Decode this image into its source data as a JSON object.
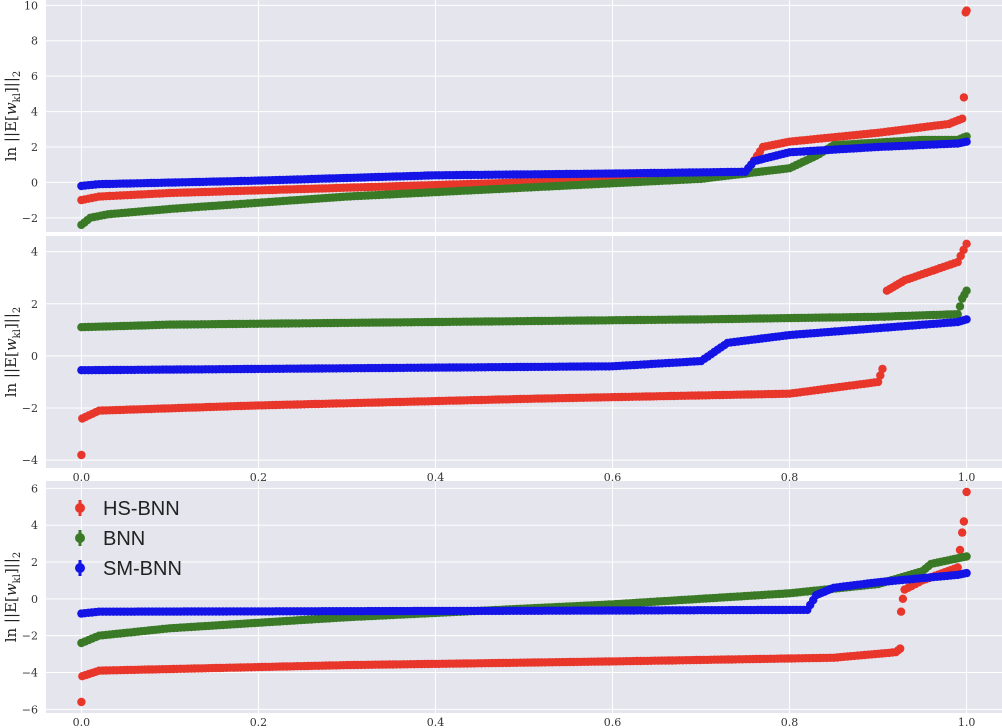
{
  "colors": {
    "panel_bg": "#e5e5ee",
    "grid": "#ffffff",
    "HS-BNN": "#e8362b",
    "BNN": "#3a7a26",
    "SM-BNN": "#1414e6"
  },
  "chart_data": [
    {
      "type": "scatter",
      "title": "",
      "xlabel": "",
      "ylabel": "ln ||E[w_kl]||_2",
      "xlim": [
        -0.04,
        1.04
      ],
      "ylim": [
        -2.8,
        10.3
      ],
      "yticks": [
        -2,
        0,
        2,
        4,
        6,
        8,
        10
      ],
      "xticks": [],
      "x_tick_labels": [],
      "grid": true,
      "legend": null,
      "series": [
        {
          "name": "HS-BNN",
          "points": [
            [
              0.0,
              -1.0
            ],
            [
              0.02,
              -0.8
            ],
            [
              0.1,
              -0.6
            ],
            [
              0.3,
              -0.3
            ],
            [
              0.5,
              0.0
            ],
            [
              0.6,
              0.1
            ],
            [
              0.75,
              0.5
            ],
            [
              0.77,
              2.0
            ],
            [
              0.8,
              2.3
            ],
            [
              0.9,
              2.8
            ],
            [
              0.98,
              3.3
            ],
            [
              0.995,
              3.6
            ],
            [
              0.997,
              4.8
            ],
            [
              0.999,
              9.6
            ],
            [
              1.0,
              9.7
            ]
          ]
        },
        {
          "name": "BNN",
          "points": [
            [
              0.0,
              -2.4
            ],
            [
              0.01,
              -2.0
            ],
            [
              0.03,
              -1.8
            ],
            [
              0.1,
              -1.5
            ],
            [
              0.3,
              -0.8
            ],
            [
              0.5,
              -0.3
            ],
            [
              0.7,
              0.2
            ],
            [
              0.8,
              0.8
            ],
            [
              0.83,
              1.5
            ],
            [
              0.85,
              2.1
            ],
            [
              0.95,
              2.4
            ],
            [
              0.99,
              2.4
            ],
            [
              1.0,
              2.6
            ]
          ]
        },
        {
          "name": "SM-BNN",
          "points": [
            [
              0.0,
              -0.2
            ],
            [
              0.02,
              -0.1
            ],
            [
              0.2,
              0.1
            ],
            [
              0.4,
              0.4
            ],
            [
              0.6,
              0.5
            ],
            [
              0.75,
              0.6
            ],
            [
              0.76,
              1.2
            ],
            [
              0.8,
              1.7
            ],
            [
              0.9,
              2.0
            ],
            [
              0.99,
              2.2
            ],
            [
              1.0,
              2.3
            ]
          ]
        }
      ]
    },
    {
      "type": "scatter",
      "title": "",
      "xlabel": "",
      "ylabel": "ln ||E[w_kl]||_2",
      "xlim": [
        -0.04,
        1.04
      ],
      "ylim": [
        -4.3,
        4.6
      ],
      "yticks": [
        -4,
        -2,
        0,
        2,
        4
      ],
      "xticks": [
        0.0,
        0.2,
        0.4,
        0.6,
        0.8,
        1.0
      ],
      "x_tick_labels": [
        "0.0",
        "0.2",
        "0.4",
        "0.6",
        "0.8",
        "1.0"
      ],
      "grid": true,
      "legend": null,
      "series": [
        {
          "name": "HS-BNN",
          "points": [
            [
              0.0,
              -3.8
            ],
            [
              0.001,
              -2.4
            ],
            [
              0.02,
              -2.1
            ],
            [
              0.2,
              -1.9
            ],
            [
              0.5,
              -1.65
            ],
            [
              0.8,
              -1.45
            ],
            [
              0.9,
              -1.0
            ],
            [
              0.905,
              -0.5
            ],
            [
              0.907,
              1.5
            ],
            [
              0.91,
              2.5
            ],
            [
              0.93,
              2.9
            ],
            [
              0.99,
              3.6
            ],
            [
              1.0,
              4.3
            ]
          ]
        },
        {
          "name": "BNN",
          "points": [
            [
              0.0,
              1.1
            ],
            [
              0.1,
              1.2
            ],
            [
              0.4,
              1.3
            ],
            [
              0.7,
              1.4
            ],
            [
              0.9,
              1.5
            ],
            [
              0.99,
              1.6
            ],
            [
              0.995,
              2.2
            ],
            [
              1.0,
              2.5
            ]
          ]
        },
        {
          "name": "SM-BNN",
          "points": [
            [
              0.0,
              -0.55
            ],
            [
              0.2,
              -0.5
            ],
            [
              0.6,
              -0.4
            ],
            [
              0.7,
              -0.2
            ],
            [
              0.73,
              0.5
            ],
            [
              0.8,
              0.8
            ],
            [
              0.99,
              1.3
            ],
            [
              1.0,
              1.4
            ]
          ]
        }
      ]
    },
    {
      "type": "scatter",
      "title": "",
      "xlabel": "",
      "ylabel": "ln ||E[w_kl]||_2",
      "xlim": [
        -0.04,
        1.04
      ],
      "ylim": [
        -6.2,
        6.4
      ],
      "yticks": [
        -6,
        -4,
        -2,
        0,
        2,
        4,
        6
      ],
      "xticks": [
        0.0,
        0.2,
        0.4,
        0.6,
        0.8,
        1.0
      ],
      "x_tick_labels": [
        "0.0",
        "0.2",
        "0.4",
        "0.6",
        "0.8",
        "1.0"
      ],
      "grid": true,
      "legend": "top-left",
      "legend_labels": [
        "HS-BNN",
        "BNN",
        "SM-BNN"
      ],
      "series": [
        {
          "name": "HS-BNN",
          "points": [
            [
              0.0,
              -5.6
            ],
            [
              0.001,
              -4.2
            ],
            [
              0.02,
              -3.9
            ],
            [
              0.3,
              -3.6
            ],
            [
              0.6,
              -3.4
            ],
            [
              0.85,
              -3.2
            ],
            [
              0.92,
              -2.9
            ],
            [
              0.925,
              -2.7
            ],
            [
              0.926,
              -0.7
            ],
            [
              0.928,
              0.0
            ],
            [
              0.93,
              0.5
            ],
            [
              0.95,
              1.0
            ],
            [
              0.99,
              1.7
            ],
            [
              0.995,
              3.6
            ],
            [
              0.997,
              4.2
            ],
            [
              1.0,
              5.8
            ]
          ]
        },
        {
          "name": "BNN",
          "points": [
            [
              0.0,
              -2.4
            ],
            [
              0.02,
              -2.0
            ],
            [
              0.1,
              -1.6
            ],
            [
              0.3,
              -1.0
            ],
            [
              0.6,
              -0.3
            ],
            [
              0.8,
              0.3
            ],
            [
              0.9,
              0.8
            ],
            [
              0.95,
              1.5
            ],
            [
              0.96,
              1.9
            ],
            [
              0.99,
              2.2
            ],
            [
              1.0,
              2.3
            ]
          ]
        },
        {
          "name": "SM-BNN",
          "points": [
            [
              0.0,
              -0.8
            ],
            [
              0.02,
              -0.7
            ],
            [
              0.5,
              -0.65
            ],
            [
              0.82,
              -0.6
            ],
            [
              0.83,
              0.2
            ],
            [
              0.85,
              0.6
            ],
            [
              0.9,
              0.9
            ],
            [
              0.99,
              1.3
            ],
            [
              1.0,
              1.4
            ]
          ]
        }
      ]
    }
  ]
}
